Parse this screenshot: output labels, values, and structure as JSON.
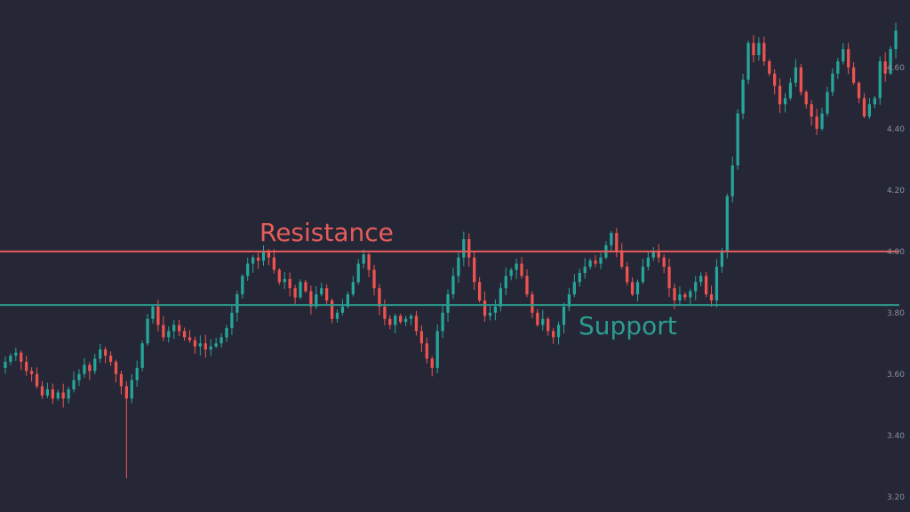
{
  "chart_data": {
    "type": "candlestick",
    "title": "",
    "xlabel": "",
    "ylabel": "",
    "ylim": [
      3.15,
      4.82
    ],
    "y_ticks": [
      3.2,
      3.4,
      3.6,
      3.8,
      4.0,
      4.2,
      4.4,
      4.6
    ],
    "y_tick_labels": [
      "3.20",
      "3.40",
      "3.60",
      "3.80",
      "4.00",
      "4.20",
      "4.40",
      "4.60"
    ],
    "grid": false,
    "colors": {
      "background": "#262736",
      "bullish": "#26a69a",
      "bearish": "#ef5350",
      "resistance": "#e85c5c",
      "support": "#2a9d8f",
      "axis_text": "#8b8f9d"
    },
    "levels": [
      {
        "name": "Resistance",
        "value": 4.0,
        "color": "#e85c5c"
      },
      {
        "name": "Support",
        "value": 3.825,
        "color": "#2a9d8f"
      }
    ],
    "closes": [
      3.64,
      3.66,
      3.67,
      3.64,
      3.61,
      3.6,
      3.56,
      3.53,
      3.55,
      3.52,
      3.54,
      3.52,
      3.55,
      3.58,
      3.6,
      3.63,
      3.61,
      3.65,
      3.68,
      3.66,
      3.64,
      3.6,
      3.56,
      3.52,
      3.58,
      3.62,
      3.7,
      3.78,
      3.82,
      3.76,
      3.72,
      3.74,
      3.76,
      3.74,
      3.72,
      3.71,
      3.69,
      3.7,
      3.68,
      3.69,
      3.7,
      3.72,
      3.75,
      3.8,
      3.86,
      3.92,
      3.96,
      3.98,
      3.97,
      4.0,
      3.98,
      3.94,
      3.9,
      3.91,
      3.88,
      3.85,
      3.9,
      3.87,
      3.82,
      3.86,
      3.88,
      3.84,
      3.78,
      3.8,
      3.82,
      3.86,
      3.9,
      3.96,
      3.99,
      3.94,
      3.88,
      3.82,
      3.78,
      3.76,
      3.79,
      3.77,
      3.78,
      3.79,
      3.74,
      3.7,
      3.65,
      3.62,
      3.74,
      3.8,
      3.86,
      3.92,
      3.98,
      4.04,
      3.98,
      3.9,
      3.84,
      3.79,
      3.8,
      3.82,
      3.88,
      3.92,
      3.94,
      3.96,
      3.92,
      3.86,
      3.8,
      3.76,
      3.78,
      3.74,
      3.72,
      3.76,
      3.82,
      3.86,
      3.9,
      3.93,
      3.95,
      3.97,
      3.96,
      3.98,
      4.02,
      4.06,
      4.0,
      3.95,
      3.9,
      3.86,
      3.9,
      3.95,
      3.98,
      4.0,
      3.98,
      3.95,
      3.88,
      3.84,
      3.86,
      3.85,
      3.87,
      3.9,
      3.92,
      3.86,
      3.84,
      3.95,
      4.0,
      4.18,
      4.28,
      4.45,
      4.56,
      4.68,
      4.64,
      4.68,
      4.62,
      4.58,
      4.54,
      4.48,
      4.5,
      4.55,
      4.6,
      4.52,
      4.48,
      4.44,
      4.4,
      4.45,
      4.52,
      4.58,
      4.62,
      4.66,
      4.6,
      4.55,
      4.5,
      4.44,
      4.48,
      4.5,
      4.62,
      4.58,
      4.66,
      4.72
    ]
  }
}
